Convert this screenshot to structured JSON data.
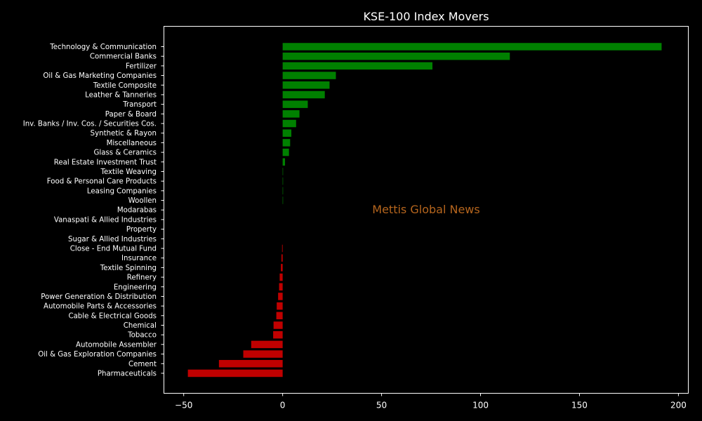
{
  "chart_data": {
    "type": "bar",
    "orientation": "horizontal",
    "title": "KSE-100 Index Movers",
    "watermark": "Mettis Global News",
    "xlabel": "",
    "ylabel": "",
    "xlim": [
      -60,
      205
    ],
    "xticks": [
      -50,
      0,
      50,
      100,
      150,
      200
    ],
    "grid": false,
    "legend": "none",
    "colors": {
      "positive": "#008000",
      "negative": "#c00000",
      "background": "#000000",
      "text": "#ffffff",
      "watermark": "#b5651d"
    },
    "categories": [
      "Technology & Communication",
      "Commercial Banks",
      "Fertilizer",
      "Oil & Gas Marketing Companies",
      "Textile Composite",
      "Leather & Tanneries",
      "Transport",
      "Paper & Board",
      "Inv. Banks / Inv. Cos. / Securities Cos.",
      "Synthetic & Rayon",
      "Miscellaneous",
      "Glass & Ceramics",
      "Real Estate Investment Trust",
      "Textile Weaving",
      "Food & Personal Care Products",
      "Leasing Companies",
      "Woollen",
      "Modarabas",
      "Vanaspati & Allied Industries",
      "Property",
      "Sugar & Allied Industries",
      "Close - End Mutual Fund",
      "Insurance",
      "Textile Spinning",
      "Refinery",
      "Engineering",
      "Power Generation & Distribution",
      "Automobile Parts & Accessories",
      "Cable & Electrical Goods",
      "Chemical",
      "Tobacco",
      "Automobile Assembler",
      "Oil & Gas Exploration Companies",
      "Cement",
      "Pharmaceuticals"
    ],
    "values": [
      191.5,
      114.8,
      75.7,
      26.9,
      23.7,
      21.3,
      12.7,
      8.5,
      6.8,
      4.4,
      3.8,
      3.2,
      1.2,
      0.2,
      0.15,
      0.1,
      0.05,
      0,
      0,
      0,
      0,
      -0.3,
      -0.6,
      -0.9,
      -1.5,
      -1.8,
      -2.3,
      -3.0,
      -3.2,
      -4.6,
      -4.8,
      -15.9,
      -19.9,
      -32.2,
      -47.9
    ]
  }
}
